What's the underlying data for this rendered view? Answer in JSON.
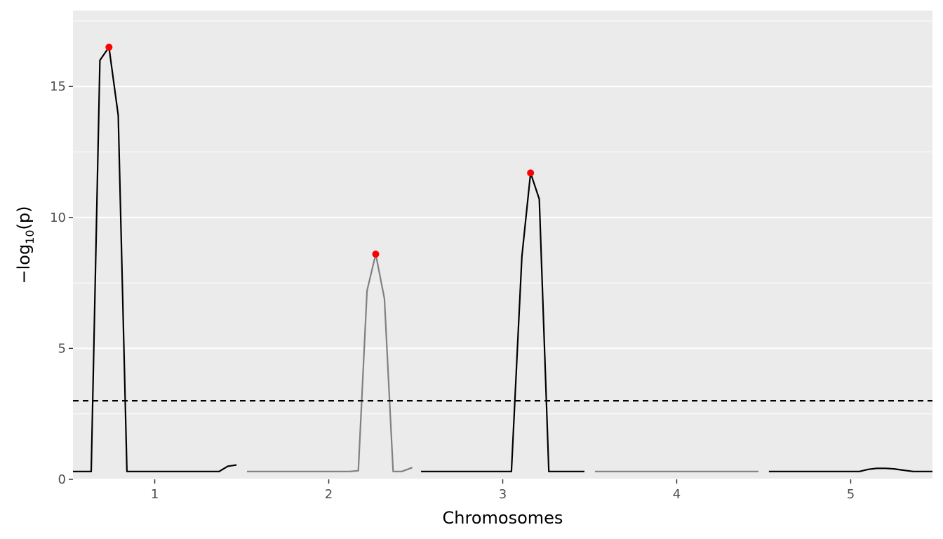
{
  "chart_data": {
    "type": "line",
    "title": "",
    "xlabel": "Chromosomes",
    "ylabel": {
      "main": "−log",
      "sub": "10",
      "arg": "(p)"
    },
    "xlim": [
      0.53,
      5.47
    ],
    "ylim": [
      0,
      17.9
    ],
    "x_ticks": [
      {
        "value": 1,
        "label": "1"
      },
      {
        "value": 2,
        "label": "2"
      },
      {
        "value": 3,
        "label": "3"
      },
      {
        "value": 4,
        "label": "4"
      },
      {
        "value": 5,
        "label": "5"
      }
    ],
    "y_ticks": [
      {
        "value": 0,
        "label": "0"
      },
      {
        "value": 5,
        "label": "5"
      },
      {
        "value": 10,
        "label": "10"
      },
      {
        "value": 15,
        "label": "15"
      }
    ],
    "grid": true,
    "legend": "none",
    "threshold": 3.0,
    "colors": {
      "panel": "#ebebeb",
      "grid": "#ffffff",
      "odd_chromosome": "#000000",
      "even_chromosome": "#808080",
      "peak": "#ff0000",
      "threshold": "#000000"
    },
    "series": [
      {
        "chromosome": "1",
        "color": "#000000",
        "x": [
          0.53,
          0.635,
          0.685,
          0.737,
          0.79,
          0.84,
          0.895,
          1.0,
          1.1,
          1.2,
          1.3,
          1.37,
          1.42,
          1.47
        ],
        "y": [
          0.3,
          0.3,
          16.0,
          16.5,
          13.9,
          0.3,
          0.3,
          0.3,
          0.3,
          0.3,
          0.3,
          0.3,
          0.5,
          0.55
        ]
      },
      {
        "chromosome": "2",
        "color": "#808080",
        "x": [
          1.53,
          1.7,
          1.9,
          2.12,
          2.17,
          2.22,
          2.27,
          2.32,
          2.37,
          2.42,
          2.48
        ],
        "y": [
          0.3,
          0.3,
          0.3,
          0.3,
          0.33,
          7.2,
          8.6,
          6.9,
          0.3,
          0.3,
          0.45
        ]
      },
      {
        "chromosome": "3",
        "color": "#000000",
        "x": [
          2.53,
          2.8,
          3.05,
          3.11,
          3.16,
          3.21,
          3.265,
          3.35,
          3.47
        ],
        "y": [
          0.3,
          0.3,
          0.3,
          8.5,
          11.7,
          10.7,
          0.3,
          0.3,
          0.3
        ]
      },
      {
        "chromosome": "4",
        "color": "#808080",
        "x": [
          3.53,
          3.8,
          4.1,
          4.47
        ],
        "y": [
          0.3,
          0.3,
          0.3,
          0.3
        ]
      },
      {
        "chromosome": "5",
        "color": "#000000",
        "x": [
          4.53,
          4.8,
          5.05,
          5.1,
          5.15,
          5.2,
          5.25,
          5.3,
          5.36,
          5.47
        ],
        "y": [
          0.3,
          0.3,
          0.3,
          0.38,
          0.42,
          0.42,
          0.4,
          0.35,
          0.3,
          0.3
        ]
      }
    ],
    "peaks": [
      {
        "chromosome": "1",
        "x": 0.737,
        "y": 16.5
      },
      {
        "chromosome": "2",
        "x": 2.27,
        "y": 8.6
      },
      {
        "chromosome": "3",
        "x": 3.16,
        "y": 11.7
      }
    ]
  }
}
